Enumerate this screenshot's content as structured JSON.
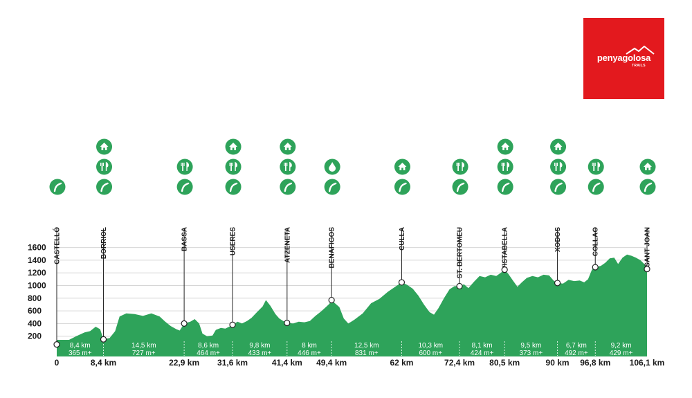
{
  "brand": {
    "name": "penyagolosa",
    "sub": "TRAILS",
    "color": "#e3191e"
  },
  "colors": {
    "profile": "#2ea35a",
    "profile_dark": "#1f8a47",
    "icon_bg": "#2ea35a",
    "text": "#1a1a1a"
  },
  "chart_data": {
    "type": "area",
    "title": "",
    "xlabel": "",
    "ylabel": "",
    "xlim": [
      0,
      106.1
    ],
    "ylim": [
      0,
      1700
    ],
    "yticks": [
      200,
      400,
      600,
      800,
      1000,
      1200,
      1400,
      1600
    ],
    "grid": true,
    "profile": [
      [
        0,
        70
      ],
      [
        1.5,
        110
      ],
      [
        3.5,
        200
      ],
      [
        5,
        260
      ],
      [
        6,
        280
      ],
      [
        7,
        350
      ],
      [
        7.8,
        310
      ],
      [
        8.4,
        150
      ],
      [
        9.5,
        170
      ],
      [
        10.5,
        280
      ],
      [
        11.3,
        510
      ],
      [
        12.5,
        560
      ],
      [
        14,
        550
      ],
      [
        15.5,
        520
      ],
      [
        17,
        560
      ],
      [
        18.5,
        510
      ],
      [
        19.5,
        430
      ],
      [
        20.5,
        360
      ],
      [
        21.5,
        310
      ],
      [
        22.1,
        290
      ],
      [
        22.9,
        400
      ],
      [
        24,
        430
      ],
      [
        24.8,
        470
      ],
      [
        25.6,
        400
      ],
      [
        26.2,
        240
      ],
      [
        27,
        200
      ],
      [
        28,
        210
      ],
      [
        28.6,
        300
      ],
      [
        29.5,
        330
      ],
      [
        30.3,
        320
      ],
      [
        31,
        350
      ],
      [
        31.6,
        380
      ],
      [
        32.5,
        430
      ],
      [
        33.3,
        400
      ],
      [
        34.2,
        440
      ],
      [
        35,
        490
      ],
      [
        36,
        580
      ],
      [
        37,
        670
      ],
      [
        37.6,
        770
      ],
      [
        38.4,
        680
      ],
      [
        39.3,
        550
      ],
      [
        40,
        480
      ],
      [
        40.7,
        440
      ],
      [
        41.4,
        410
      ],
      [
        42.5,
        400
      ],
      [
        43.5,
        430
      ],
      [
        44.5,
        420
      ],
      [
        45.5,
        440
      ],
      [
        46.5,
        520
      ],
      [
        47.5,
        590
      ],
      [
        48.5,
        670
      ],
      [
        49,
        710
      ],
      [
        49.4,
        770
      ],
      [
        50,
        720
      ],
      [
        50.8,
        660
      ],
      [
        51.6,
        480
      ],
      [
        52.4,
        400
      ],
      [
        53.5,
        460
      ],
      [
        55,
        560
      ],
      [
        56.5,
        720
      ],
      [
        58,
        790
      ],
      [
        59.5,
        900
      ],
      [
        61,
        990
      ],
      [
        62,
        1050
      ],
      [
        63,
        1010
      ],
      [
        64,
        950
      ],
      [
        65,
        840
      ],
      [
        66,
        700
      ],
      [
        67,
        580
      ],
      [
        67.8,
        540
      ],
      [
        68.6,
        640
      ],
      [
        69.6,
        800
      ],
      [
        70.6,
        940
      ],
      [
        71.5,
        990
      ],
      [
        72.4,
        990
      ],
      [
        73.2,
        1020
      ],
      [
        74,
        960
      ],
      [
        75,
        1060
      ],
      [
        76,
        1150
      ],
      [
        77,
        1130
      ],
      [
        78,
        1170
      ],
      [
        79,
        1150
      ],
      [
        79.8,
        1200
      ],
      [
        80.5,
        1250
      ],
      [
        81.2,
        1180
      ],
      [
        82,
        1080
      ],
      [
        82.8,
        980
      ],
      [
        83.6,
        1050
      ],
      [
        84.5,
        1120
      ],
      [
        85.5,
        1150
      ],
      [
        86.5,
        1130
      ],
      [
        87.5,
        1170
      ],
      [
        88.5,
        1160
      ],
      [
        89.3,
        1080
      ],
      [
        90,
        1040
      ],
      [
        91,
        1030
      ],
      [
        92,
        1090
      ],
      [
        93,
        1070
      ],
      [
        94,
        1080
      ],
      [
        94.8,
        1050
      ],
      [
        95.5,
        1100
      ],
      [
        96.2,
        1250
      ],
      [
        96.8,
        1290
      ],
      [
        97.8,
        1310
      ],
      [
        98.6,
        1360
      ],
      [
        99.4,
        1430
      ],
      [
        100.2,
        1440
      ],
      [
        100.9,
        1340
      ],
      [
        101.7,
        1440
      ],
      [
        102.5,
        1490
      ],
      [
        103.3,
        1470
      ],
      [
        104.1,
        1440
      ],
      [
        104.9,
        1400
      ],
      [
        105.6,
        1340
      ],
      [
        106.1,
        1260
      ]
    ],
    "checkpoints": [
      {
        "name": "CASTELLÓ",
        "km": 0,
        "km_label": "0",
        "alt": 70,
        "icons": [
          "flag"
        ]
      },
      {
        "name": "BORRIOL",
        "km": 8.4,
        "km_label": "8,4 km",
        "alt": 150,
        "icons": [
          "house",
          "cutlery",
          "flag"
        ]
      },
      {
        "name": "BASSA",
        "km": 22.9,
        "km_label": "22,9 km",
        "alt": 400,
        "icons": [
          "cutlery",
          "flag"
        ]
      },
      {
        "name": "USERES",
        "km": 31.6,
        "km_label": "31,6 km",
        "alt": 380,
        "icons": [
          "house",
          "cutlery",
          "flag"
        ]
      },
      {
        "name": "ATZENETA",
        "km": 41.4,
        "km_label": "41,4 km",
        "alt": 410,
        "icons": [
          "house",
          "cutlery",
          "flag"
        ]
      },
      {
        "name": "BENAFIGOS",
        "km": 49.4,
        "km_label": "49,4 km",
        "alt": 770,
        "icons": [
          "water",
          "flag"
        ]
      },
      {
        "name": "CULLA",
        "km": 62,
        "km_label": "62 km",
        "alt": 1050,
        "icons": [
          "house",
          "flag"
        ]
      },
      {
        "name": "ST. BERTOMEU",
        "km": 72.4,
        "km_label": "72,4 km",
        "alt": 990,
        "icons": [
          "cutlery",
          "flag"
        ]
      },
      {
        "name": "VISTABELLA",
        "km": 80.5,
        "km_label": "80,5 km",
        "alt": 1250,
        "icons": [
          "house",
          "cutlery",
          "flag"
        ]
      },
      {
        "name": "XODOS",
        "km": 90,
        "km_label": "90 km",
        "alt": 1040,
        "icons": [
          "house",
          "cutlery",
          "flag"
        ]
      },
      {
        "name": "COLLAO",
        "km": 96.8,
        "km_label": "96,8 km",
        "alt": 1290,
        "icons": [
          "cutlery",
          "flag"
        ]
      },
      {
        "name": "SANT JOAN",
        "km": 106.1,
        "km_label": "106,1 km",
        "alt": 1260,
        "icons": [
          "house",
          "flag"
        ]
      }
    ],
    "segments": [
      {
        "dist": "8,4 km",
        "gain": "365 m+"
      },
      {
        "dist": "14,5 km",
        "gain": "727 m+"
      },
      {
        "dist": "8,6 km",
        "gain": "464 m+"
      },
      {
        "dist": "9,8 km",
        "gain": "433 m+"
      },
      {
        "dist": "8 km",
        "gain": "446 m+"
      },
      {
        "dist": "12,5 km",
        "gain": "831 m+"
      },
      {
        "dist": "10,3 km",
        "gain": "600 m+"
      },
      {
        "dist": "8,1 km",
        "gain": "424 m+"
      },
      {
        "dist": "9,5 km",
        "gain": "373 m+"
      },
      {
        "dist": "6,7 km",
        "gain": "492 m+"
      },
      {
        "dist": "9,2 km",
        "gain": "429 m+"
      }
    ]
  }
}
